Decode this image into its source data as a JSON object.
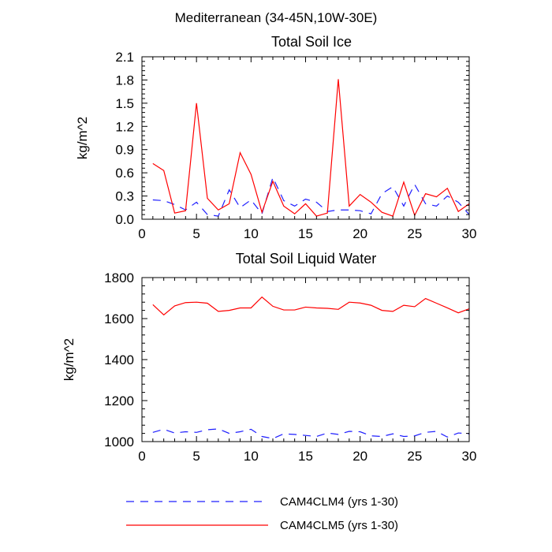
{
  "suptitle": "Mediterranean (34-45N,10W-30E)",
  "legend": [
    {
      "label": "CAM4CLM4 (yrs 1-30)",
      "color": "#1f1fff",
      "dash": "dashed"
    },
    {
      "label": "CAM4CLM5 (yrs 1-30)",
      "color": "#ff0000",
      "dash": "solid"
    }
  ],
  "chart_data": [
    {
      "type": "line",
      "title": "Total Soil Ice",
      "xlabel": "",
      "ylabel": "kg/m^2",
      "xlim": [
        0,
        30
      ],
      "ylim": [
        0,
        2.1
      ],
      "xticks": [
        0,
        5,
        10,
        15,
        20,
        25,
        30
      ],
      "yticks": [
        0.0,
        0.3,
        0.6,
        0.9,
        1.2,
        1.5,
        1.8,
        2.1
      ],
      "ytick_labels": [
        "0.0",
        "0.3",
        "0.6",
        "0.9",
        "1.2",
        "1.5",
        "1.8",
        "2.1"
      ],
      "x": [
        1,
        2,
        3,
        4,
        5,
        6,
        7,
        8,
        9,
        10,
        11,
        12,
        13,
        14,
        15,
        16,
        17,
        18,
        19,
        20,
        21,
        22,
        23,
        24,
        25,
        26,
        27,
        28,
        29,
        30
      ],
      "series": [
        {
          "name": "CAM4CLM4 (yrs 1-30)",
          "color": "#1f1fff",
          "dash": "dashed",
          "values": [
            0.25,
            0.24,
            0.19,
            0.12,
            0.22,
            0.06,
            0.04,
            0.38,
            0.15,
            0.25,
            0.07,
            0.54,
            0.24,
            0.17,
            0.26,
            0.22,
            0.1,
            0.12,
            0.12,
            0.11,
            0.07,
            0.33,
            0.42,
            0.17,
            0.45,
            0.2,
            0.17,
            0.3,
            0.22,
            0.06
          ]
        },
        {
          "name": "CAM4CLM5 (yrs 1-30)",
          "color": "#ff0000",
          "dash": "solid",
          "values": [
            0.72,
            0.63,
            0.08,
            0.11,
            1.5,
            0.27,
            0.12,
            0.2,
            0.86,
            0.58,
            0.09,
            0.49,
            0.17,
            0.07,
            0.2,
            0.04,
            0.08,
            1.81,
            0.17,
            0.32,
            0.22,
            0.09,
            0.04,
            0.48,
            0.05,
            0.33,
            0.29,
            0.4,
            0.1,
            0.2
          ]
        }
      ]
    },
    {
      "type": "line",
      "title": "Total Soil Liquid Water",
      "xlabel": "",
      "ylabel": "kg/m^2",
      "xlim": [
        0,
        30
      ],
      "ylim": [
        1000,
        1800
      ],
      "xticks": [
        0,
        5,
        10,
        15,
        20,
        25,
        30
      ],
      "yticks": [
        1000,
        1200,
        1400,
        1600,
        1800
      ],
      "ytick_labels": [
        "1000",
        "1200",
        "1400",
        "1600",
        "1800"
      ],
      "x": [
        1,
        2,
        3,
        4,
        5,
        6,
        7,
        8,
        9,
        10,
        11,
        12,
        13,
        14,
        15,
        16,
        17,
        18,
        19,
        20,
        21,
        22,
        23,
        24,
        25,
        26,
        27,
        28,
        29,
        30
      ],
      "series": [
        {
          "name": "CAM4CLM4 (yrs 1-30)",
          "color": "#1f1fff",
          "dash": "dashed",
          "values": [
            1045,
            1060,
            1042,
            1048,
            1045,
            1058,
            1062,
            1040,
            1048,
            1060,
            1025,
            1015,
            1038,
            1035,
            1030,
            1025,
            1042,
            1035,
            1050,
            1048,
            1028,
            1025,
            1038,
            1025,
            1028,
            1045,
            1050,
            1022,
            1042,
            1038
          ]
        },
        {
          "name": "CAM4CLM5 (yrs 1-30)",
          "color": "#ff0000",
          "dash": "solid",
          "values": [
            1668,
            1618,
            1662,
            1678,
            1680,
            1675,
            1635,
            1640,
            1652,
            1652,
            1705,
            1660,
            1642,
            1642,
            1656,
            1652,
            1650,
            1645,
            1680,
            1676,
            1665,
            1640,
            1635,
            1665,
            1658,
            1698,
            1675,
            1652,
            1628,
            1648
          ]
        }
      ]
    }
  ]
}
